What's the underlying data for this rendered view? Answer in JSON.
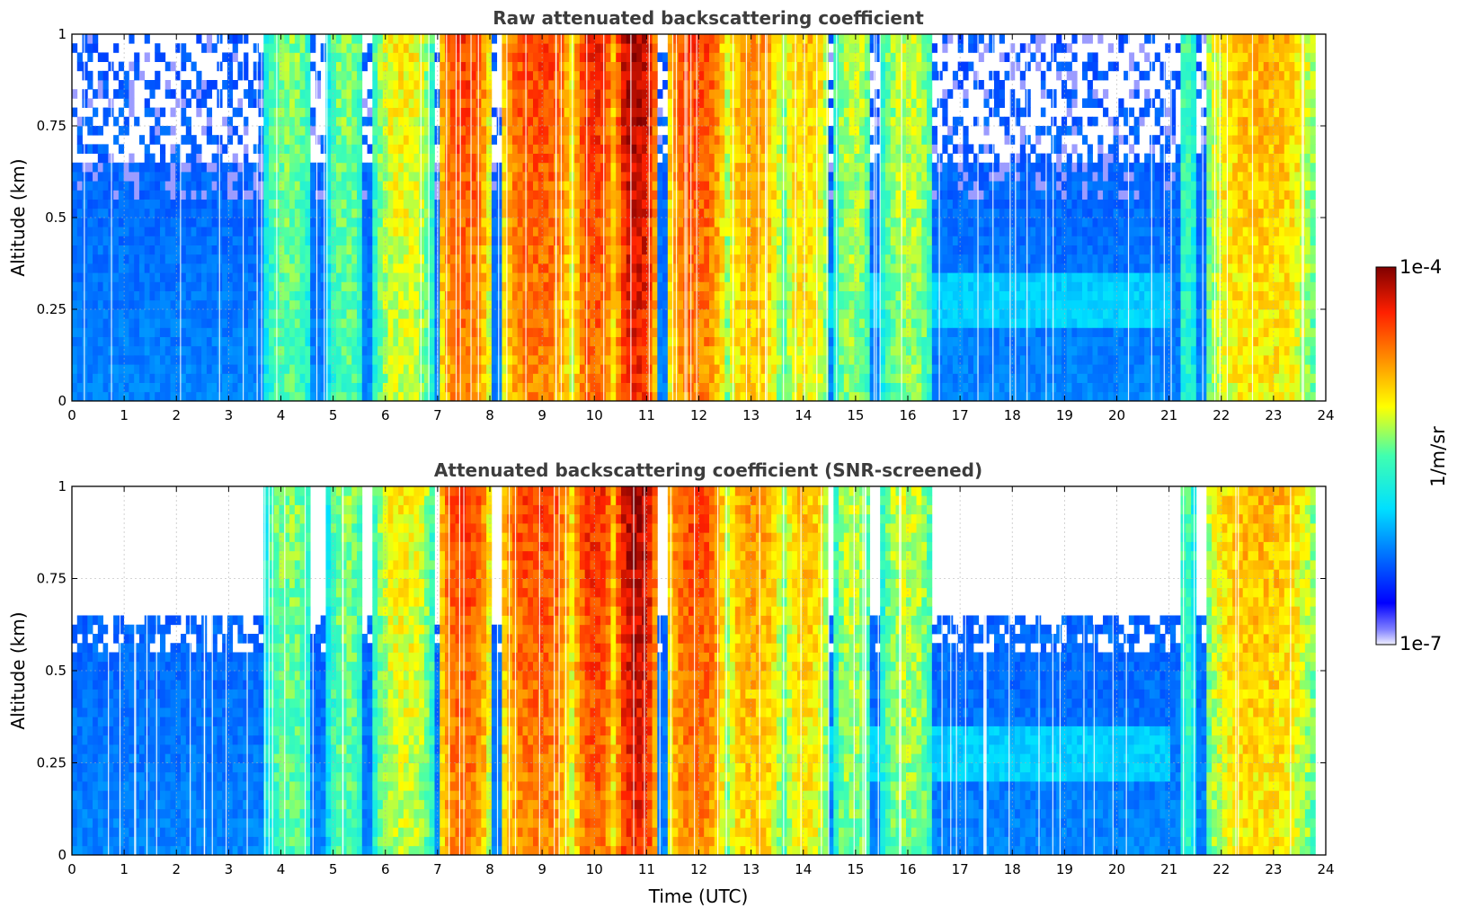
{
  "chart_data": [
    {
      "type": "heatmap",
      "title": "Raw attenuated backscattering coefficient",
      "xlabel": "",
      "ylabel": "Altitude (km)",
      "xlim": [
        0,
        24
      ],
      "ylim": [
        0,
        1
      ],
      "x_ticks": [
        "0",
        "1",
        "2",
        "3",
        "4",
        "5",
        "6",
        "7",
        "8",
        "9",
        "10",
        "11",
        "12",
        "13",
        "14",
        "15",
        "16",
        "17",
        "18",
        "19",
        "20",
        "21",
        "22",
        "23",
        "24"
      ],
      "y_ticks": [
        "0",
        "0.25",
        "0.5",
        "0.75",
        "1"
      ],
      "grid": true,
      "screened": false,
      "strong_return_bands": [
        {
          "start": 3.7,
          "end": 4.6,
          "strength": 0.55
        },
        {
          "start": 4.9,
          "end": 5.6,
          "strength": 0.55
        },
        {
          "start": 5.8,
          "end": 6.9,
          "strength": 0.65
        },
        {
          "start": 7.0,
          "end": 8.0,
          "strength": 0.85
        },
        {
          "start": 8.2,
          "end": 9.6,
          "strength": 0.85
        },
        {
          "start": 9.6,
          "end": 10.4,
          "strength": 0.88
        },
        {
          "start": 10.4,
          "end": 11.2,
          "strength": 0.97
        },
        {
          "start": 11.4,
          "end": 12.5,
          "strength": 0.85
        },
        {
          "start": 12.5,
          "end": 13.6,
          "strength": 0.75
        },
        {
          "start": 13.6,
          "end": 14.5,
          "strength": 0.7
        },
        {
          "start": 14.6,
          "end": 15.3,
          "strength": 0.6
        },
        {
          "start": 15.5,
          "end": 16.5,
          "strength": 0.6
        },
        {
          "start": 21.2,
          "end": 21.5,
          "strength": 0.5
        },
        {
          "start": 21.7,
          "end": 23.8,
          "strength": 0.72
        }
      ]
    },
    {
      "type": "heatmap",
      "title": "Attenuated backscattering coefficient (SNR-screened)",
      "xlabel": "Time (UTC)",
      "ylabel": "Altitude (km)",
      "xlim": [
        0,
        24
      ],
      "ylim": [
        0,
        1
      ],
      "x_ticks": [
        "0",
        "1",
        "2",
        "3",
        "4",
        "5",
        "6",
        "7",
        "8",
        "9",
        "10",
        "11",
        "12",
        "13",
        "14",
        "15",
        "16",
        "17",
        "18",
        "19",
        "20",
        "21",
        "22",
        "23",
        "24"
      ],
      "y_ticks": [
        "0",
        "0.25",
        "0.5",
        "0.75",
        "1"
      ],
      "grid": true,
      "screened": true,
      "strong_return_bands": [
        {
          "start": 3.7,
          "end": 4.6,
          "strength": 0.55
        },
        {
          "start": 4.9,
          "end": 5.6,
          "strength": 0.55
        },
        {
          "start": 5.8,
          "end": 6.9,
          "strength": 0.65
        },
        {
          "start": 7.0,
          "end": 8.0,
          "strength": 0.85
        },
        {
          "start": 8.2,
          "end": 9.6,
          "strength": 0.85
        },
        {
          "start": 9.6,
          "end": 10.4,
          "strength": 0.88
        },
        {
          "start": 10.4,
          "end": 11.2,
          "strength": 0.97
        },
        {
          "start": 11.4,
          "end": 12.5,
          "strength": 0.85
        },
        {
          "start": 12.5,
          "end": 13.6,
          "strength": 0.75
        },
        {
          "start": 13.6,
          "end": 14.5,
          "strength": 0.7
        },
        {
          "start": 14.6,
          "end": 15.3,
          "strength": 0.6
        },
        {
          "start": 15.5,
          "end": 16.5,
          "strength": 0.6
        },
        {
          "start": 21.2,
          "end": 21.5,
          "strength": 0.5
        },
        {
          "start": 21.7,
          "end": 23.8,
          "strength": 0.72
        }
      ]
    }
  ],
  "colorbar": {
    "label": "1/m/sr",
    "min_label": "1e-7",
    "max_label": "1e-4",
    "colormap": "jet",
    "scale": "log"
  }
}
